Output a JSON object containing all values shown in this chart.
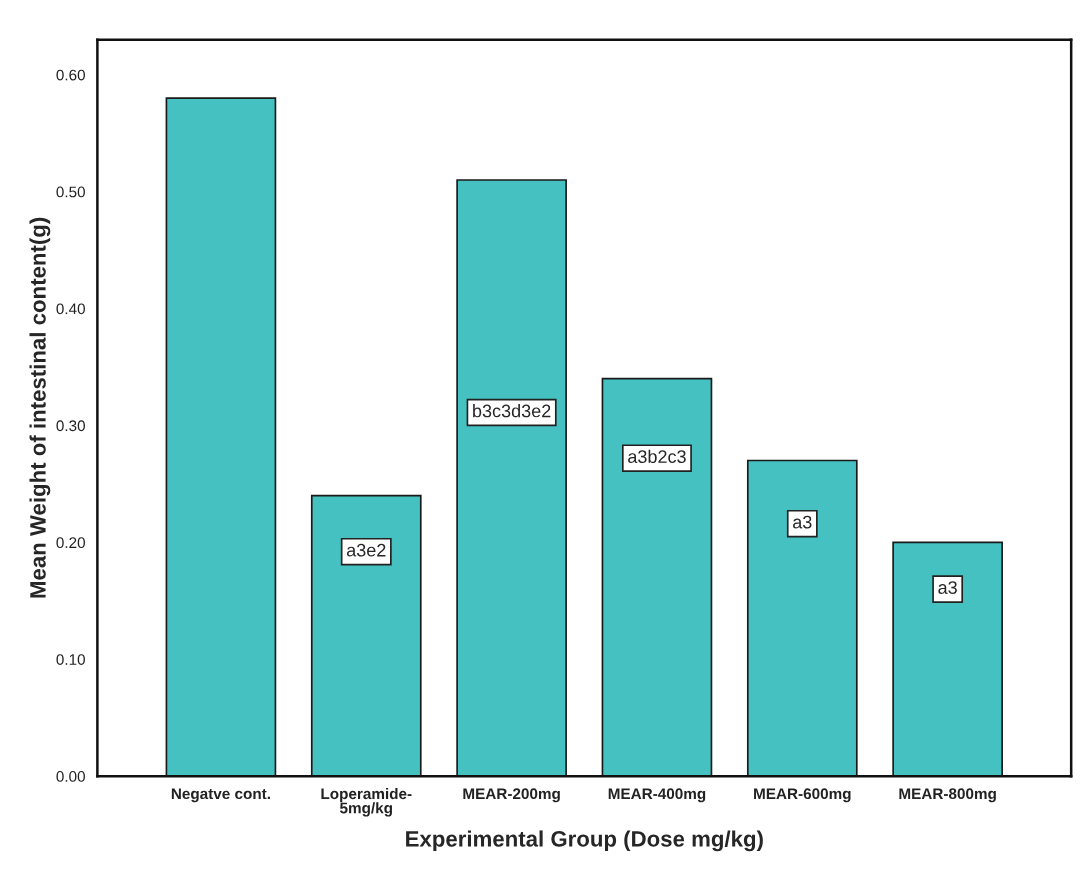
{
  "chart_data": {
    "type": "bar",
    "xlabel": "Experimental Group (Dose mg/kg)",
    "ylabel": "Mean Weight of intestinal content(g)",
    "categories": [
      "Negatve cont.",
      "Loperamide-\n5mg/kg",
      "MEAR-200mg",
      "MEAR-400mg",
      "MEAR-600mg",
      "MEAR-800mg"
    ],
    "values": [
      0.58,
      0.24,
      0.51,
      0.34,
      0.27,
      0.2
    ],
    "color": "#45c1c1",
    "ylim": [
      0,
      0.63
    ],
    "yticks": [
      {
        "value": 0,
        "label": "0.00"
      },
      {
        "value": 0.1,
        "label": "0.10"
      },
      {
        "value": 0.2,
        "label": "0.20"
      },
      {
        "value": 0.3,
        "label": "0.30"
      },
      {
        "value": 0.4,
        "label": "0.40"
      },
      {
        "value": 0.5,
        "label": "0.50"
      },
      {
        "value": 0.6,
        "label": "0.60"
      }
    ],
    "grid": false,
    "annotations": [
      "a3e2",
      "b3c3d3e2",
      "a3b2c3",
      "a3",
      "a3"
    ]
  }
}
